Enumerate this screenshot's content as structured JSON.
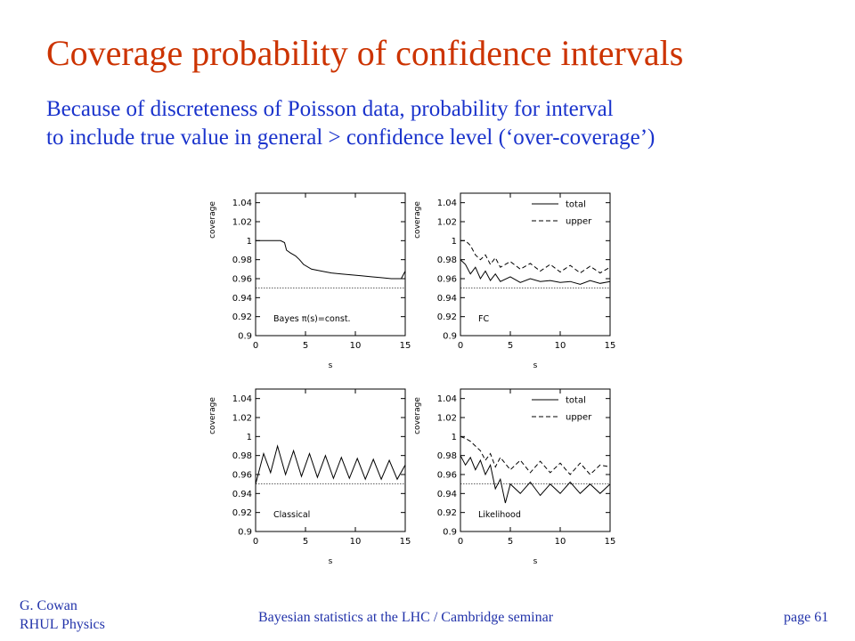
{
  "slide": {
    "title": "Coverage probability of confidence intervals",
    "subtitle_lines": [
      "Because of discreteness of Poisson data, probability for interval",
      "to include true value in general > confidence level (‘over-coverage’)"
    ],
    "footer": {
      "author": "G. Cowan",
      "affiliation": "RHUL Physics",
      "talk": "Bayesian statistics at the LHC  /  Cambridge seminar",
      "page": "page 61"
    },
    "colors": {
      "title": "#cc3300",
      "text": "#1a33cc",
      "plot": "#000000"
    }
  },
  "chart_data": [
    {
      "type": "line",
      "panel": "top-left",
      "annotation": "Bayes π(s)=const.",
      "xlabel": "s",
      "ylabel": "coverage",
      "xlim": [
        0,
        15
      ],
      "ylim": [
        0.9,
        1.05
      ],
      "xticks": [
        0,
        5,
        10,
        15
      ],
      "yticks": [
        0.9,
        0.92,
        0.94,
        0.96,
        0.98,
        1,
        1.02,
        1.04
      ],
      "yticklabels": [
        "0.9",
        "0.92",
        "0.94",
        "0.96",
        "0.98",
        "1",
        "1.02",
        "1.04"
      ],
      "reference_level": 0.95,
      "legend": [],
      "series": [
        {
          "style": "solid",
          "x": [
            0,
            2.5,
            2.9,
            3.1,
            3.5,
            4.0,
            4.4,
            4.8,
            5.6,
            6.6,
            7.6,
            8.6,
            9.6,
            10.6,
            11.6,
            12.6,
            13.6,
            14.6,
            15
          ],
          "values": [
            1.0,
            1.0,
            0.998,
            0.99,
            0.987,
            0.984,
            0.98,
            0.975,
            0.97,
            0.968,
            0.966,
            0.965,
            0.964,
            0.963,
            0.962,
            0.961,
            0.96,
            0.96,
            0.968
          ]
        }
      ]
    },
    {
      "type": "line",
      "panel": "top-right",
      "annotation": "FC",
      "xlabel": "s",
      "ylabel": "coverage",
      "xlim": [
        0,
        15
      ],
      "ylim": [
        0.9,
        1.05
      ],
      "xticks": [
        0,
        5,
        10,
        15
      ],
      "yticks": [
        0.9,
        0.92,
        0.94,
        0.96,
        0.98,
        1,
        1.02,
        1.04
      ],
      "yticklabels": [
        "0.9",
        "0.92",
        "0.94",
        "0.96",
        "0.98",
        "1",
        "1.02",
        "1.04"
      ],
      "reference_level": 0.95,
      "legend": [
        {
          "name": "total",
          "style": "solid"
        },
        {
          "name": "upper",
          "style": "dashed"
        }
      ],
      "series": [
        {
          "name": "total",
          "style": "solid",
          "x": [
            0,
            0.5,
            1.0,
            1.5,
            2.0,
            2.5,
            3.0,
            3.5,
            4.0,
            5.0,
            6.0,
            7.0,
            8.0,
            9.0,
            10.0,
            11.0,
            12.0,
            13.0,
            14.0,
            15.0
          ],
          "values": [
            0.98,
            0.975,
            0.965,
            0.972,
            0.96,
            0.968,
            0.958,
            0.965,
            0.957,
            0.962,
            0.956,
            0.96,
            0.957,
            0.958,
            0.956,
            0.957,
            0.954,
            0.958,
            0.955,
            0.957
          ]
        },
        {
          "name": "upper",
          "style": "dashed",
          "x": [
            0,
            0.5,
            1.0,
            1.5,
            2.0,
            2.5,
            3.0,
            3.5,
            4.0,
            5.0,
            6.0,
            7.0,
            8.0,
            9.0,
            10.0,
            11.0,
            12.0,
            13.0,
            14.0,
            15.0
          ],
          "values": [
            1.0,
            1.0,
            0.995,
            0.985,
            0.98,
            0.985,
            0.975,
            0.982,
            0.972,
            0.978,
            0.97,
            0.976,
            0.968,
            0.975,
            0.967,
            0.974,
            0.966,
            0.973,
            0.966,
            0.972
          ]
        }
      ]
    },
    {
      "type": "line",
      "panel": "bottom-left",
      "annotation": "Classical",
      "xlabel": "s",
      "ylabel": "coverage",
      "xlim": [
        0,
        15
      ],
      "ylim": [
        0.9,
        1.05
      ],
      "xticks": [
        0,
        5,
        10,
        15
      ],
      "yticks": [
        0.9,
        0.92,
        0.94,
        0.96,
        0.98,
        1,
        1.02,
        1.04
      ],
      "yticklabels": [
        "0.9",
        "0.92",
        "0.94",
        "0.96",
        "0.98",
        "1",
        "1.02",
        "1.04"
      ],
      "reference_level": 0.95,
      "legend": [],
      "series": [
        {
          "style": "solid",
          "x": [
            0,
            0.8,
            1.5,
            2.2,
            3.0,
            3.8,
            4.6,
            5.4,
            6.2,
            7.0,
            7.8,
            8.6,
            9.4,
            10.2,
            11.0,
            11.8,
            12.6,
            13.4,
            14.2,
            15.0
          ],
          "values": [
            0.95,
            0.982,
            0.962,
            0.99,
            0.96,
            0.985,
            0.958,
            0.982,
            0.957,
            0.98,
            0.956,
            0.978,
            0.956,
            0.977,
            0.955,
            0.976,
            0.955,
            0.975,
            0.955,
            0.97
          ]
        }
      ]
    },
    {
      "type": "line",
      "panel": "bottom-right",
      "annotation": "Likelihood",
      "xlabel": "s",
      "ylabel": "coverage",
      "xlim": [
        0,
        15
      ],
      "ylim": [
        0.9,
        1.05
      ],
      "xticks": [
        0,
        5,
        10,
        15
      ],
      "yticks": [
        0.9,
        0.92,
        0.94,
        0.96,
        0.98,
        1,
        1.02,
        1.04
      ],
      "yticklabels": [
        "0.9",
        "0.92",
        "0.94",
        "0.96",
        "0.98",
        "1",
        "1.02",
        "1.04"
      ],
      "reference_level": 0.95,
      "legend": [
        {
          "name": "total",
          "style": "solid"
        },
        {
          "name": "upper",
          "style": "dashed"
        }
      ],
      "series": [
        {
          "name": "total",
          "style": "solid",
          "x": [
            0,
            0.5,
            1.0,
            1.5,
            2.0,
            2.5,
            3.0,
            3.5,
            4.0,
            4.5,
            5.0,
            6.0,
            7.0,
            8.0,
            9.0,
            10.0,
            11.0,
            12.0,
            13.0,
            14.0,
            15.0
          ],
          "values": [
            0.98,
            0.97,
            0.978,
            0.965,
            0.975,
            0.96,
            0.97,
            0.945,
            0.955,
            0.93,
            0.95,
            0.94,
            0.952,
            0.938,
            0.95,
            0.94,
            0.952,
            0.94,
            0.95,
            0.94,
            0.95
          ]
        },
        {
          "name": "upper",
          "style": "dashed",
          "x": [
            0,
            0.5,
            1.0,
            1.5,
            2.0,
            2.5,
            3.0,
            3.5,
            4.0,
            5.0,
            6.0,
            7.0,
            8.0,
            9.0,
            10.0,
            11.0,
            12.0,
            13.0,
            14.0,
            15.0
          ],
          "values": [
            1.0,
            0.998,
            0.995,
            0.99,
            0.985,
            0.975,
            0.982,
            0.968,
            0.978,
            0.965,
            0.975,
            0.962,
            0.974,
            0.962,
            0.972,
            0.96,
            0.972,
            0.96,
            0.97,
            0.968
          ]
        }
      ]
    }
  ]
}
